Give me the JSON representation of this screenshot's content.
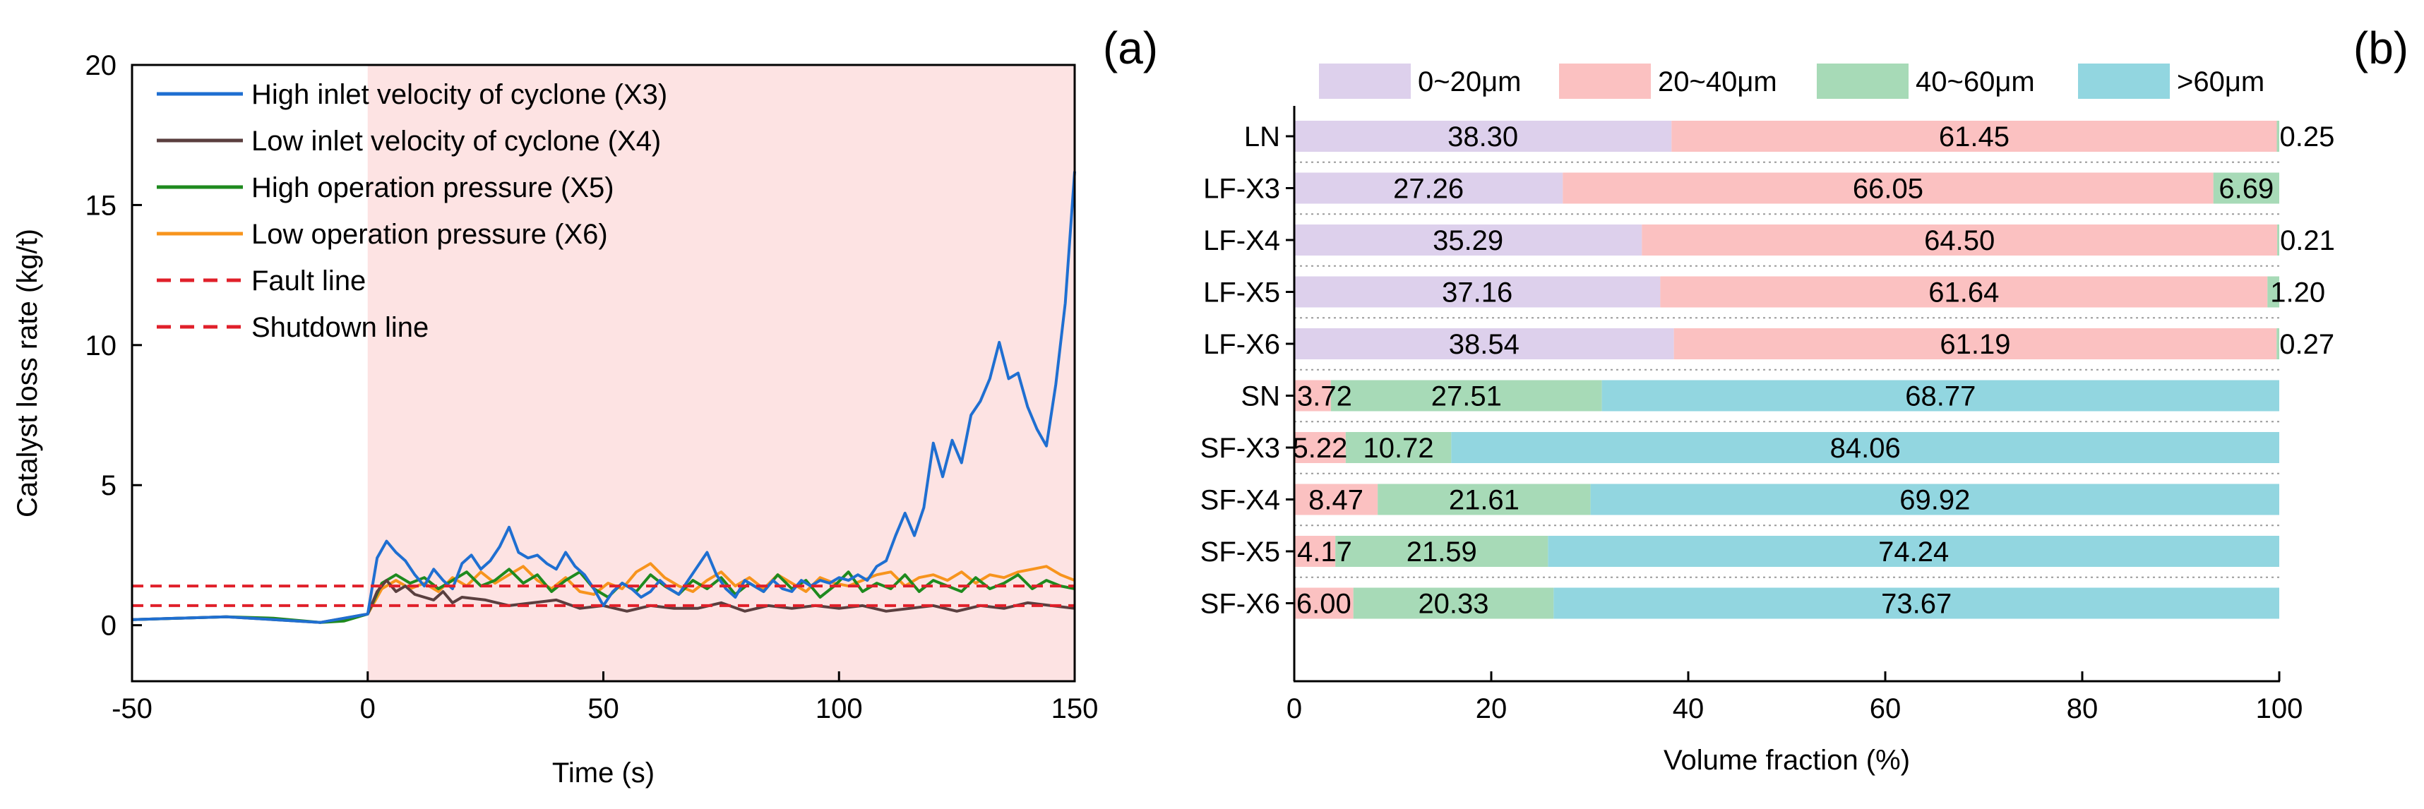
{
  "chart_data": [
    {
      "panel_label": "(a)",
      "type": "line",
      "title": "",
      "xlabel": "Time (s)",
      "ylabel": "Catalyst loss rate (kg/t)",
      "xlim": [
        -50,
        150
      ],
      "ylim": [
        -2,
        20
      ],
      "xticks": [
        "-50",
        "0",
        "50",
        "100",
        "150"
      ],
      "yticks": [
        "0",
        "5",
        "10",
        "15",
        "20"
      ],
      "fault_region_start": 0,
      "legend": {
        "position": "top-left"
      },
      "series": [
        {
          "name": "High inlet velocity of cyclone (X3)",
          "color": "#1f6fd1",
          "style": "solid",
          "x": [
            -50,
            -30,
            -10,
            0,
            2,
            4,
            6,
            8,
            10,
            12,
            14,
            16,
            18,
            20,
            22,
            24,
            26,
            28,
            30,
            32,
            34,
            36,
            38,
            40,
            42,
            44,
            46,
            48,
            50,
            52,
            54,
            56,
            58,
            60,
            62,
            64,
            66,
            68,
            70,
            72,
            74,
            76,
            78,
            80,
            82,
            84,
            86,
            88,
            90,
            92,
            94,
            96,
            98,
            100,
            102,
            104,
            106,
            108,
            110,
            112,
            114,
            116,
            118,
            120,
            122,
            124,
            126,
            128,
            130,
            132,
            134,
            136,
            138,
            140,
            142,
            144,
            146,
            148,
            150
          ],
          "y": [
            0.2,
            0.3,
            0.1,
            0.4,
            2.4,
            3.0,
            2.6,
            2.3,
            1.8,
            1.4,
            2.0,
            1.6,
            1.3,
            2.2,
            2.5,
            2.0,
            2.3,
            2.8,
            3.5,
            2.6,
            2.4,
            2.5,
            2.2,
            2.0,
            2.6,
            2.1,
            1.8,
            1.3,
            0.7,
            1.2,
            1.5,
            1.3,
            1.0,
            1.2,
            1.6,
            1.3,
            1.1,
            1.6,
            2.1,
            2.6,
            1.8,
            1.3,
            1.0,
            1.6,
            1.4,
            1.2,
            1.6,
            1.3,
            1.2,
            1.6,
            1.4,
            1.6,
            1.5,
            1.7,
            1.6,
            1.8,
            1.6,
            2.1,
            2.3,
            3.2,
            4.0,
            3.2,
            4.2,
            6.5,
            5.3,
            6.6,
            5.8,
            7.5,
            8.0,
            8.8,
            10.1,
            8.8,
            9.0,
            7.8,
            7.0,
            6.4,
            8.6,
            11.5,
            16.2
          ]
        },
        {
          "name": "Low inlet velocity of cyclone (X4)",
          "color": "#5a3f3f",
          "style": "solid",
          "x": [
            -50,
            -30,
            -10,
            0,
            2,
            4,
            6,
            8,
            10,
            12,
            14,
            16,
            18,
            20,
            25,
            30,
            35,
            40,
            45,
            50,
            55,
            60,
            65,
            70,
            75,
            80,
            85,
            90,
            95,
            100,
            105,
            110,
            115,
            120,
            125,
            130,
            135,
            140,
            145,
            150
          ],
          "y": [
            0.2,
            0.3,
            0.1,
            0.4,
            1.2,
            1.6,
            1.2,
            1.4,
            1.1,
            1.0,
            0.9,
            1.2,
            0.8,
            1.0,
            0.9,
            0.7,
            0.8,
            0.9,
            0.6,
            0.7,
            0.5,
            0.7,
            0.6,
            0.6,
            0.8,
            0.5,
            0.7,
            0.6,
            0.7,
            0.6,
            0.7,
            0.5,
            0.6,
            0.7,
            0.5,
            0.7,
            0.6,
            0.8,
            0.7,
            0.6
          ]
        },
        {
          "name": "High operation pressure (X5)",
          "color": "#1e8a1e",
          "style": "solid",
          "x": [
            -50,
            -40,
            -30,
            -20,
            -10,
            -5,
            0,
            3,
            6,
            9,
            12,
            15,
            18,
            21,
            24,
            27,
            30,
            33,
            36,
            39,
            42,
            45,
            48,
            51,
            54,
            57,
            60,
            63,
            66,
            69,
            72,
            75,
            78,
            81,
            84,
            87,
            90,
            93,
            96,
            99,
            102,
            105,
            108,
            111,
            114,
            117,
            120,
            123,
            126,
            129,
            132,
            135,
            138,
            141,
            144,
            147,
            150
          ],
          "y": [
            0.2,
            0.25,
            0.3,
            0.25,
            0.1,
            0.15,
            0.4,
            1.5,
            1.8,
            1.5,
            1.7,
            1.3,
            1.6,
            1.9,
            1.4,
            1.6,
            2.0,
            1.5,
            1.8,
            1.2,
            1.6,
            1.9,
            1.3,
            1.0,
            1.5,
            1.2,
            1.8,
            1.4,
            1.1,
            1.6,
            1.3,
            1.7,
            1.1,
            1.5,
            1.2,
            1.8,
            1.3,
            1.6,
            1.0,
            1.4,
            1.9,
            1.2,
            1.5,
            1.3,
            1.8,
            1.2,
            1.6,
            1.4,
            1.2,
            1.7,
            1.3,
            1.5,
            1.8,
            1.3,
            1.6,
            1.4,
            1.3
          ]
        },
        {
          "name": "Low operation pressure (X6)",
          "color": "#f7941d",
          "style": "solid",
          "x": [
            0,
            3,
            6,
            9,
            12,
            15,
            18,
            21,
            24,
            27,
            30,
            33,
            36,
            39,
            42,
            45,
            48,
            51,
            54,
            57,
            60,
            63,
            66,
            69,
            72,
            75,
            78,
            81,
            84,
            87,
            90,
            93,
            96,
            99,
            102,
            105,
            108,
            111,
            114,
            117,
            120,
            123,
            126,
            129,
            132,
            135,
            138,
            141,
            144,
            147,
            150
          ],
          "y": [
            0.4,
            1.3,
            1.6,
            1.3,
            1.5,
            1.2,
            1.7,
            1.4,
            1.9,
            1.5,
            1.8,
            2.1,
            1.6,
            1.3,
            1.7,
            1.2,
            1.1,
            1.5,
            1.3,
            1.9,
            2.2,
            1.7,
            1.4,
            1.2,
            1.6,
            1.9,
            1.4,
            1.7,
            1.3,
            1.8,
            1.5,
            1.2,
            1.7,
            1.5,
            1.4,
            1.6,
            1.8,
            1.9,
            1.4,
            1.7,
            1.8,
            1.6,
            1.9,
            1.5,
            1.8,
            1.7,
            1.9,
            2.0,
            2.1,
            1.8,
            1.6
          ]
        },
        {
          "name": "Fault line",
          "color": "#e0202a",
          "style": "dashed",
          "y_value": 0.7
        },
        {
          "name": "Shutdown line",
          "color": "#e0202a",
          "style": "dashed",
          "y_value": 1.4
        }
      ]
    },
    {
      "panel_label": "(b)",
      "type": "bar",
      "orientation": "horizontal",
      "stacked": true,
      "xlabel": "Volume fraction (%)",
      "xlim": [
        0,
        100
      ],
      "xticks": [
        "0",
        "20",
        "40",
        "60",
        "80",
        "100"
      ],
      "legend": {
        "position": "top"
      },
      "categories": [
        "LN",
        "LF-X3",
        "LF-X4",
        "LF-X5",
        "LF-X6",
        "SN",
        "SF-X3",
        "SF-X4",
        "SF-X5",
        "SF-X6"
      ],
      "series": [
        {
          "name": "0~20μm",
          "color": "#ddd0ec",
          "values": [
            38.3,
            27.26,
            35.29,
            37.16,
            38.54,
            0,
            0,
            0,
            0,
            0
          ],
          "labels": [
            "38.30",
            "27.26",
            "35.29",
            "37.16",
            "38.54",
            "",
            "",
            "",
            "",
            ""
          ]
        },
        {
          "name": "20~40μm",
          "color": "#fbc1c1",
          "values": [
            61.45,
            66.05,
            64.5,
            61.64,
            61.19,
            3.72,
            5.22,
            8.47,
            4.17,
            6.0
          ],
          "labels": [
            "61.45",
            "66.05",
            "64.50",
            "61.64",
            "61.19",
            "3.72",
            "5.22",
            "8.47",
            "4.17",
            "6.00"
          ]
        },
        {
          "name": "40~60μm",
          "color": "#a7dab7",
          "values": [
            0.25,
            6.69,
            0.21,
            1.2,
            0.27,
            27.51,
            10.72,
            21.61,
            21.59,
            20.33
          ],
          "labels": [
            "0.25",
            "6.69",
            "0.21",
            "1.20",
            "0.27",
            "27.51",
            "10.72",
            "21.61",
            "21.59",
            "20.33"
          ]
        },
        {
          "name": ">60μm",
          "color": "#92d6e0",
          "values": [
            0,
            0,
            0,
            0,
            0,
            68.77,
            84.06,
            69.92,
            74.24,
            73.67
          ],
          "labels": [
            "",
            "",
            "",
            "",
            "",
            "68.77",
            "84.06",
            "69.92",
            "74.24",
            "73.67"
          ]
        }
      ]
    }
  ]
}
